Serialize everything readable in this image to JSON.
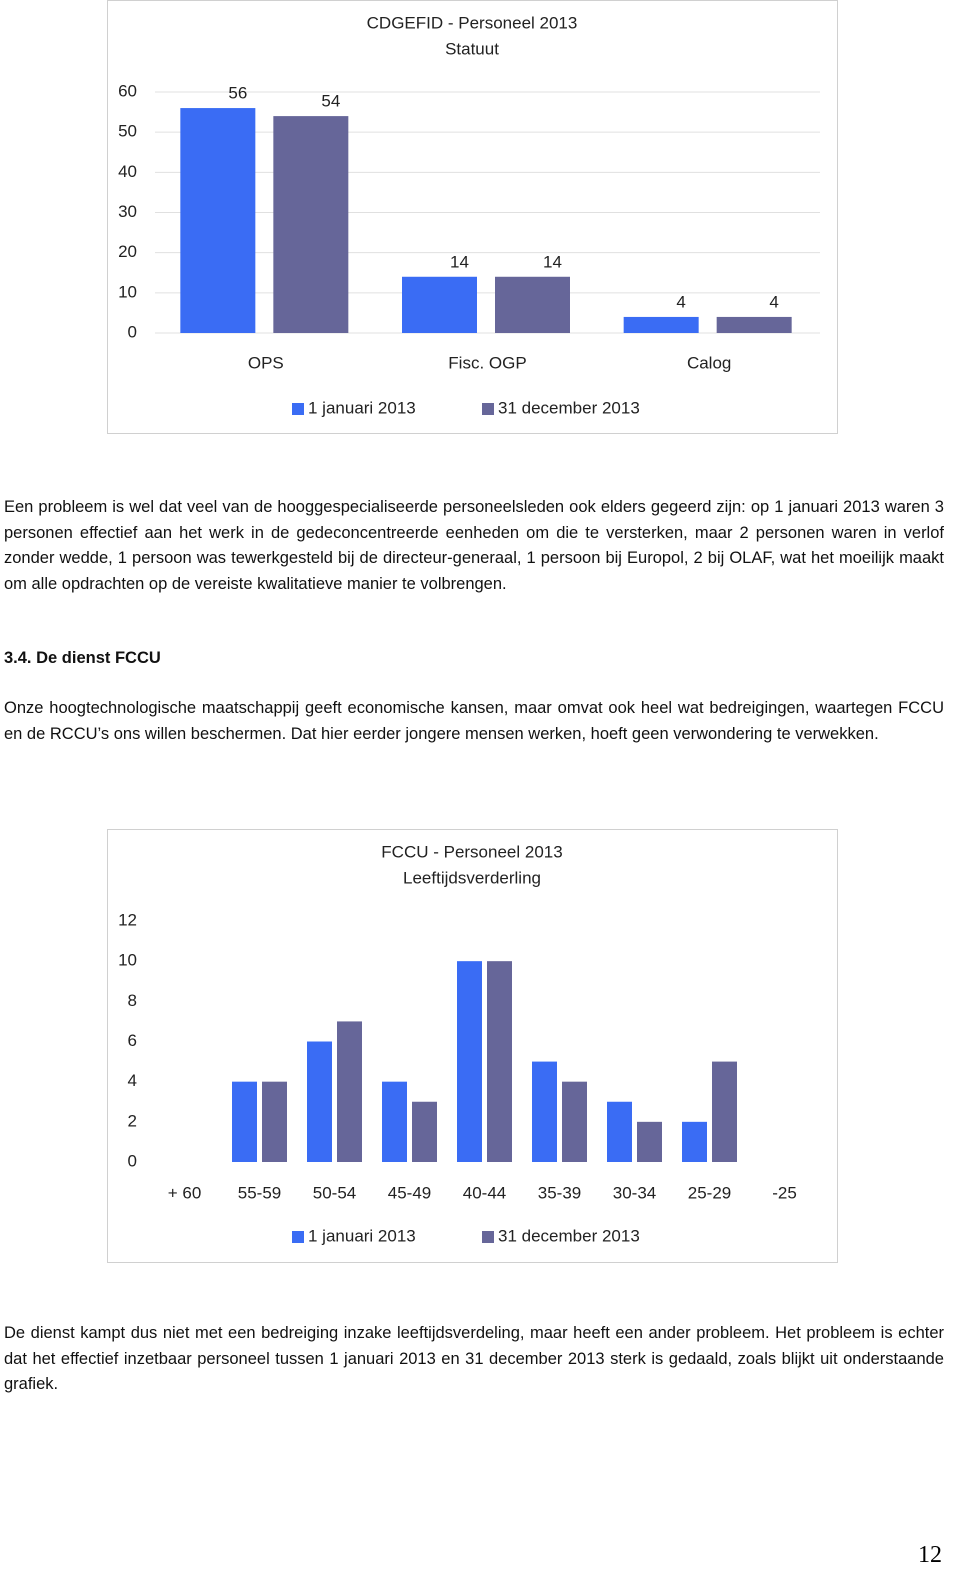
{
  "chart_data": [
    {
      "type": "bar",
      "title": "CDGEFID - Personeel 2013",
      "subtitle": "Statuut",
      "categories": [
        "OPS",
        "Fisc. OGP",
        "Calog"
      ],
      "series": [
        {
          "name": "1 januari 2013",
          "color": "#3a6cf4",
          "values": [
            56,
            14,
            4
          ]
        },
        {
          "name": "31 december 2013",
          "color": "#666699",
          "values": [
            54,
            14,
            4
          ]
        }
      ],
      "ylim": [
        0,
        60
      ],
      "yticks": [
        0,
        10,
        20,
        30,
        40,
        50,
        60
      ],
      "grid": true,
      "data_labels": true,
      "legend": "bottom"
    },
    {
      "type": "bar",
      "title": "FCCU - Personeel 2013",
      "subtitle": "Leeftijdsverderling",
      "categories": [
        "+ 60",
        "55-59",
        "50-54",
        "45-49",
        "40-44",
        "35-39",
        "30-34",
        "25-29",
        "-25"
      ],
      "series": [
        {
          "name": "1 januari 2013",
          "color": "#3a6cf4",
          "values": [
            0,
            4,
            6,
            4,
            10,
            5,
            3,
            2,
            0
          ]
        },
        {
          "name": "31 december 2013",
          "color": "#666699",
          "values": [
            0,
            4,
            7,
            3,
            10,
            4,
            2,
            5,
            0
          ]
        }
      ],
      "ylim": [
        0,
        12
      ],
      "yticks": [
        0,
        2,
        4,
        6,
        8,
        10,
        12
      ],
      "grid": false,
      "data_labels": false,
      "legend": "bottom"
    }
  ],
  "paragraphs": [
    "Een probleem is wel dat veel van de hooggespecialiseerde personeelsleden ook elders gegeerd zijn: op 1 januari 2013 waren 3 personen effectief aan het werk in de gedeconcentreerde eenheden om die te versterken, maar 2 personen waren in verlof zonder wedde, 1 persoon was tewerkgesteld bij de directeur-generaal, 1 persoon bij Europol, 2 bij OLAF, wat het moeilijk maakt om alle opdrachten op de vereiste kwalitatieve manier te volbrengen.",
    "Onze hoogtechnologische maatschappij geeft economische kansen, maar omvat ook heel wat bedreigingen, waartegen FCCU en de RCCU’s ons willen beschermen. Dat hier eerder jongere mensen werken, hoeft geen verwondering te verwekken.",
    "De dienst kampt dus niet met een bedreiging inzake leeftijdsverdeling, maar heeft een ander probleem. Het probleem is echter dat het effectief inzetbaar personeel tussen 1 januari 2013 en 31 december 2013 sterk is gedaald, zoals blijkt uit onderstaande grafiek."
  ],
  "heading": "3.4. De dienst FCCU",
  "page_number": "12"
}
